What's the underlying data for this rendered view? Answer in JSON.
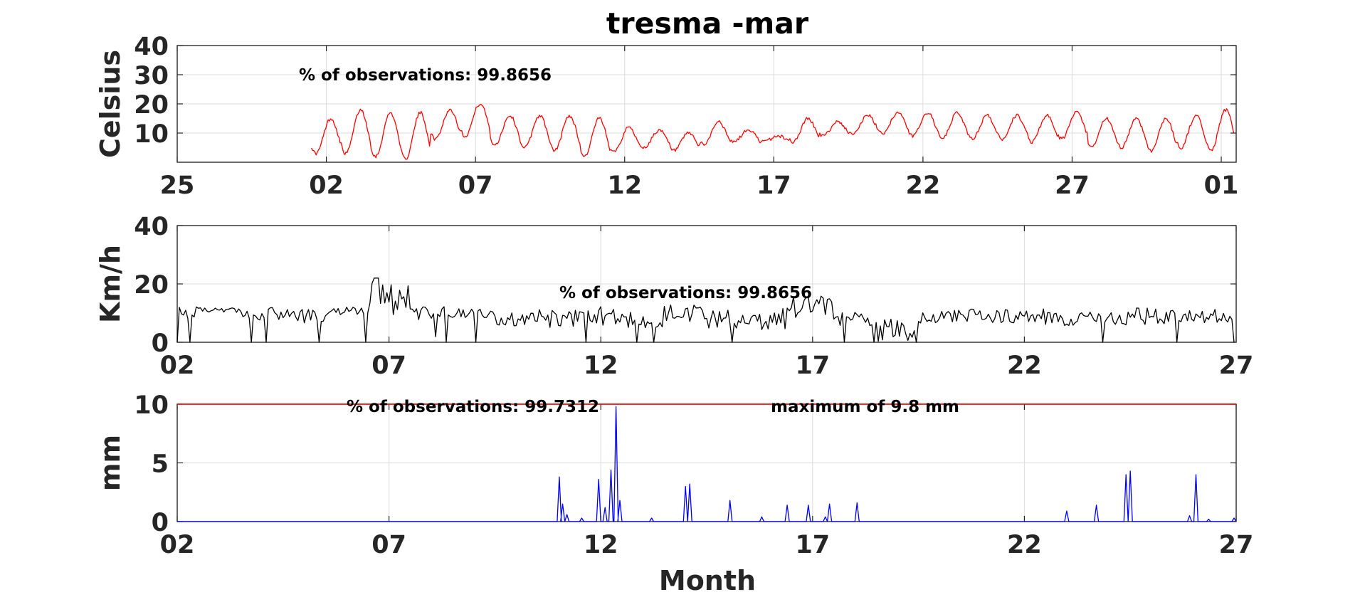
{
  "title": "tresma -mar",
  "xlabel": "Month",
  "colors": {
    "temperature": "#ff0000",
    "wind": "#000000",
    "precip": "#0000ff",
    "max_line": "#ff0000"
  },
  "chart_data": [
    {
      "type": "line",
      "name": "temperature",
      "ylabel": "Celsius",
      "ylim": [
        0,
        40
      ],
      "yticks": [
        "10",
        "20",
        "30",
        "40"
      ],
      "ytick_values": [
        10,
        20,
        30,
        40
      ],
      "xlim_days": [
        -4.5,
        31
      ],
      "xtick_labels": [
        "25",
        "02",
        "07",
        "12",
        "17",
        "22",
        "27",
        "01"
      ],
      "xtick_days": [
        -4.5,
        0.5,
        5.5,
        10.5,
        15.5,
        20.5,
        25.5,
        30.5
      ],
      "annotation": "% of observations: 99.8656",
      "grid": true,
      "daily_max": [
        15,
        18,
        17,
        17,
        18,
        20,
        16,
        16,
        16,
        15,
        12,
        11,
        10,
        14,
        11,
        9,
        15,
        14,
        16,
        17,
        17,
        17,
        16,
        16,
        16,
        17,
        15,
        15,
        15,
        16,
        18
      ],
      "daily_min": [
        3,
        3,
        2,
        1,
        8,
        9,
        6,
        5,
        4,
        2,
        4,
        5,
        4,
        6,
        7,
        7,
        7,
        9,
        10,
        10,
        9,
        8,
        8,
        8,
        7,
        8,
        5,
        5,
        4,
        5,
        4
      ]
    },
    {
      "type": "line",
      "name": "wind",
      "ylabel": "Km/h",
      "ylim": [
        0,
        40
      ],
      "yticks": [
        "0",
        "20",
        "40"
      ],
      "ytick_values": [
        0,
        20,
        40
      ],
      "xlim_days": [
        0.5,
        25.5
      ],
      "xtick_labels": [
        "02",
        "07",
        "12",
        "17",
        "22",
        "27"
      ],
      "xtick_days": [
        0.5,
        5.5,
        10.5,
        15.5,
        20.5,
        25.5
      ],
      "annotation": "% of observations: 99.8656",
      "grid": true,
      "daily_mean": [
        10,
        11,
        10,
        9,
        11,
        15,
        10,
        10,
        8,
        8,
        9,
        8,
        10,
        8,
        8,
        12,
        8,
        4,
        9,
        9,
        9,
        8,
        8,
        9,
        9,
        9,
        9,
        9,
        9,
        10,
        10
      ],
      "daily_peak": [
        13,
        12,
        13,
        12,
        13,
        22,
        13,
        13,
        11,
        12,
        13,
        12,
        14,
        12,
        13,
        17,
        11,
        9,
        12,
        12,
        12,
        11,
        11,
        13,
        12,
        12,
        12,
        12,
        12,
        13,
        12
      ]
    },
    {
      "type": "line",
      "name": "precipitation",
      "ylabel": "mm",
      "ylim": [
        0,
        10
      ],
      "yticks": [
        "0",
        "5",
        "10"
      ],
      "ytick_values": [
        0,
        5,
        10
      ],
      "xlim_days": [
        0.5,
        25.5
      ],
      "xtick_labels": [
        "02",
        "07",
        "12",
        "17",
        "22",
        "27"
      ],
      "xtick_days": [
        0.5,
        5.5,
        10.5,
        15.5,
        20.5,
        25.5
      ],
      "annotation": "% of observations: 99.7312",
      "max_annotation": "maximum of 9.8 mm",
      "max_value": 9.8,
      "grid": true,
      "peaks": [
        {
          "day": 9.52,
          "value": 3.8
        },
        {
          "day": 9.6,
          "value": 1.5
        },
        {
          "day": 9.7,
          "value": 0.6
        },
        {
          "day": 10.05,
          "value": 0.3
        },
        {
          "day": 10.45,
          "value": 3.6
        },
        {
          "day": 10.6,
          "value": 1.2
        },
        {
          "day": 10.74,
          "value": 4.4
        },
        {
          "day": 10.86,
          "value": 9.8
        },
        {
          "day": 10.95,
          "value": 1.8
        },
        {
          "day": 11.7,
          "value": 0.3
        },
        {
          "day": 12.5,
          "value": 3.0
        },
        {
          "day": 12.6,
          "value": 3.2
        },
        {
          "day": 13.55,
          "value": 1.8
        },
        {
          "day": 14.3,
          "value": 0.4
        },
        {
          "day": 14.9,
          "value": 1.4
        },
        {
          "day": 15.4,
          "value": 1.4
        },
        {
          "day": 15.8,
          "value": 0.4
        },
        {
          "day": 15.9,
          "value": 1.5
        },
        {
          "day": 16.55,
          "value": 1.6
        },
        {
          "day": 21.5,
          "value": 0.9
        },
        {
          "day": 22.2,
          "value": 1.4
        },
        {
          "day": 22.9,
          "value": 4.0
        },
        {
          "day": 23.0,
          "value": 4.3
        },
        {
          "day": 24.4,
          "value": 0.5
        },
        {
          "day": 24.55,
          "value": 4.0
        },
        {
          "day": 24.85,
          "value": 0.2
        },
        {
          "day": 25.45,
          "value": 0.3
        }
      ]
    }
  ]
}
